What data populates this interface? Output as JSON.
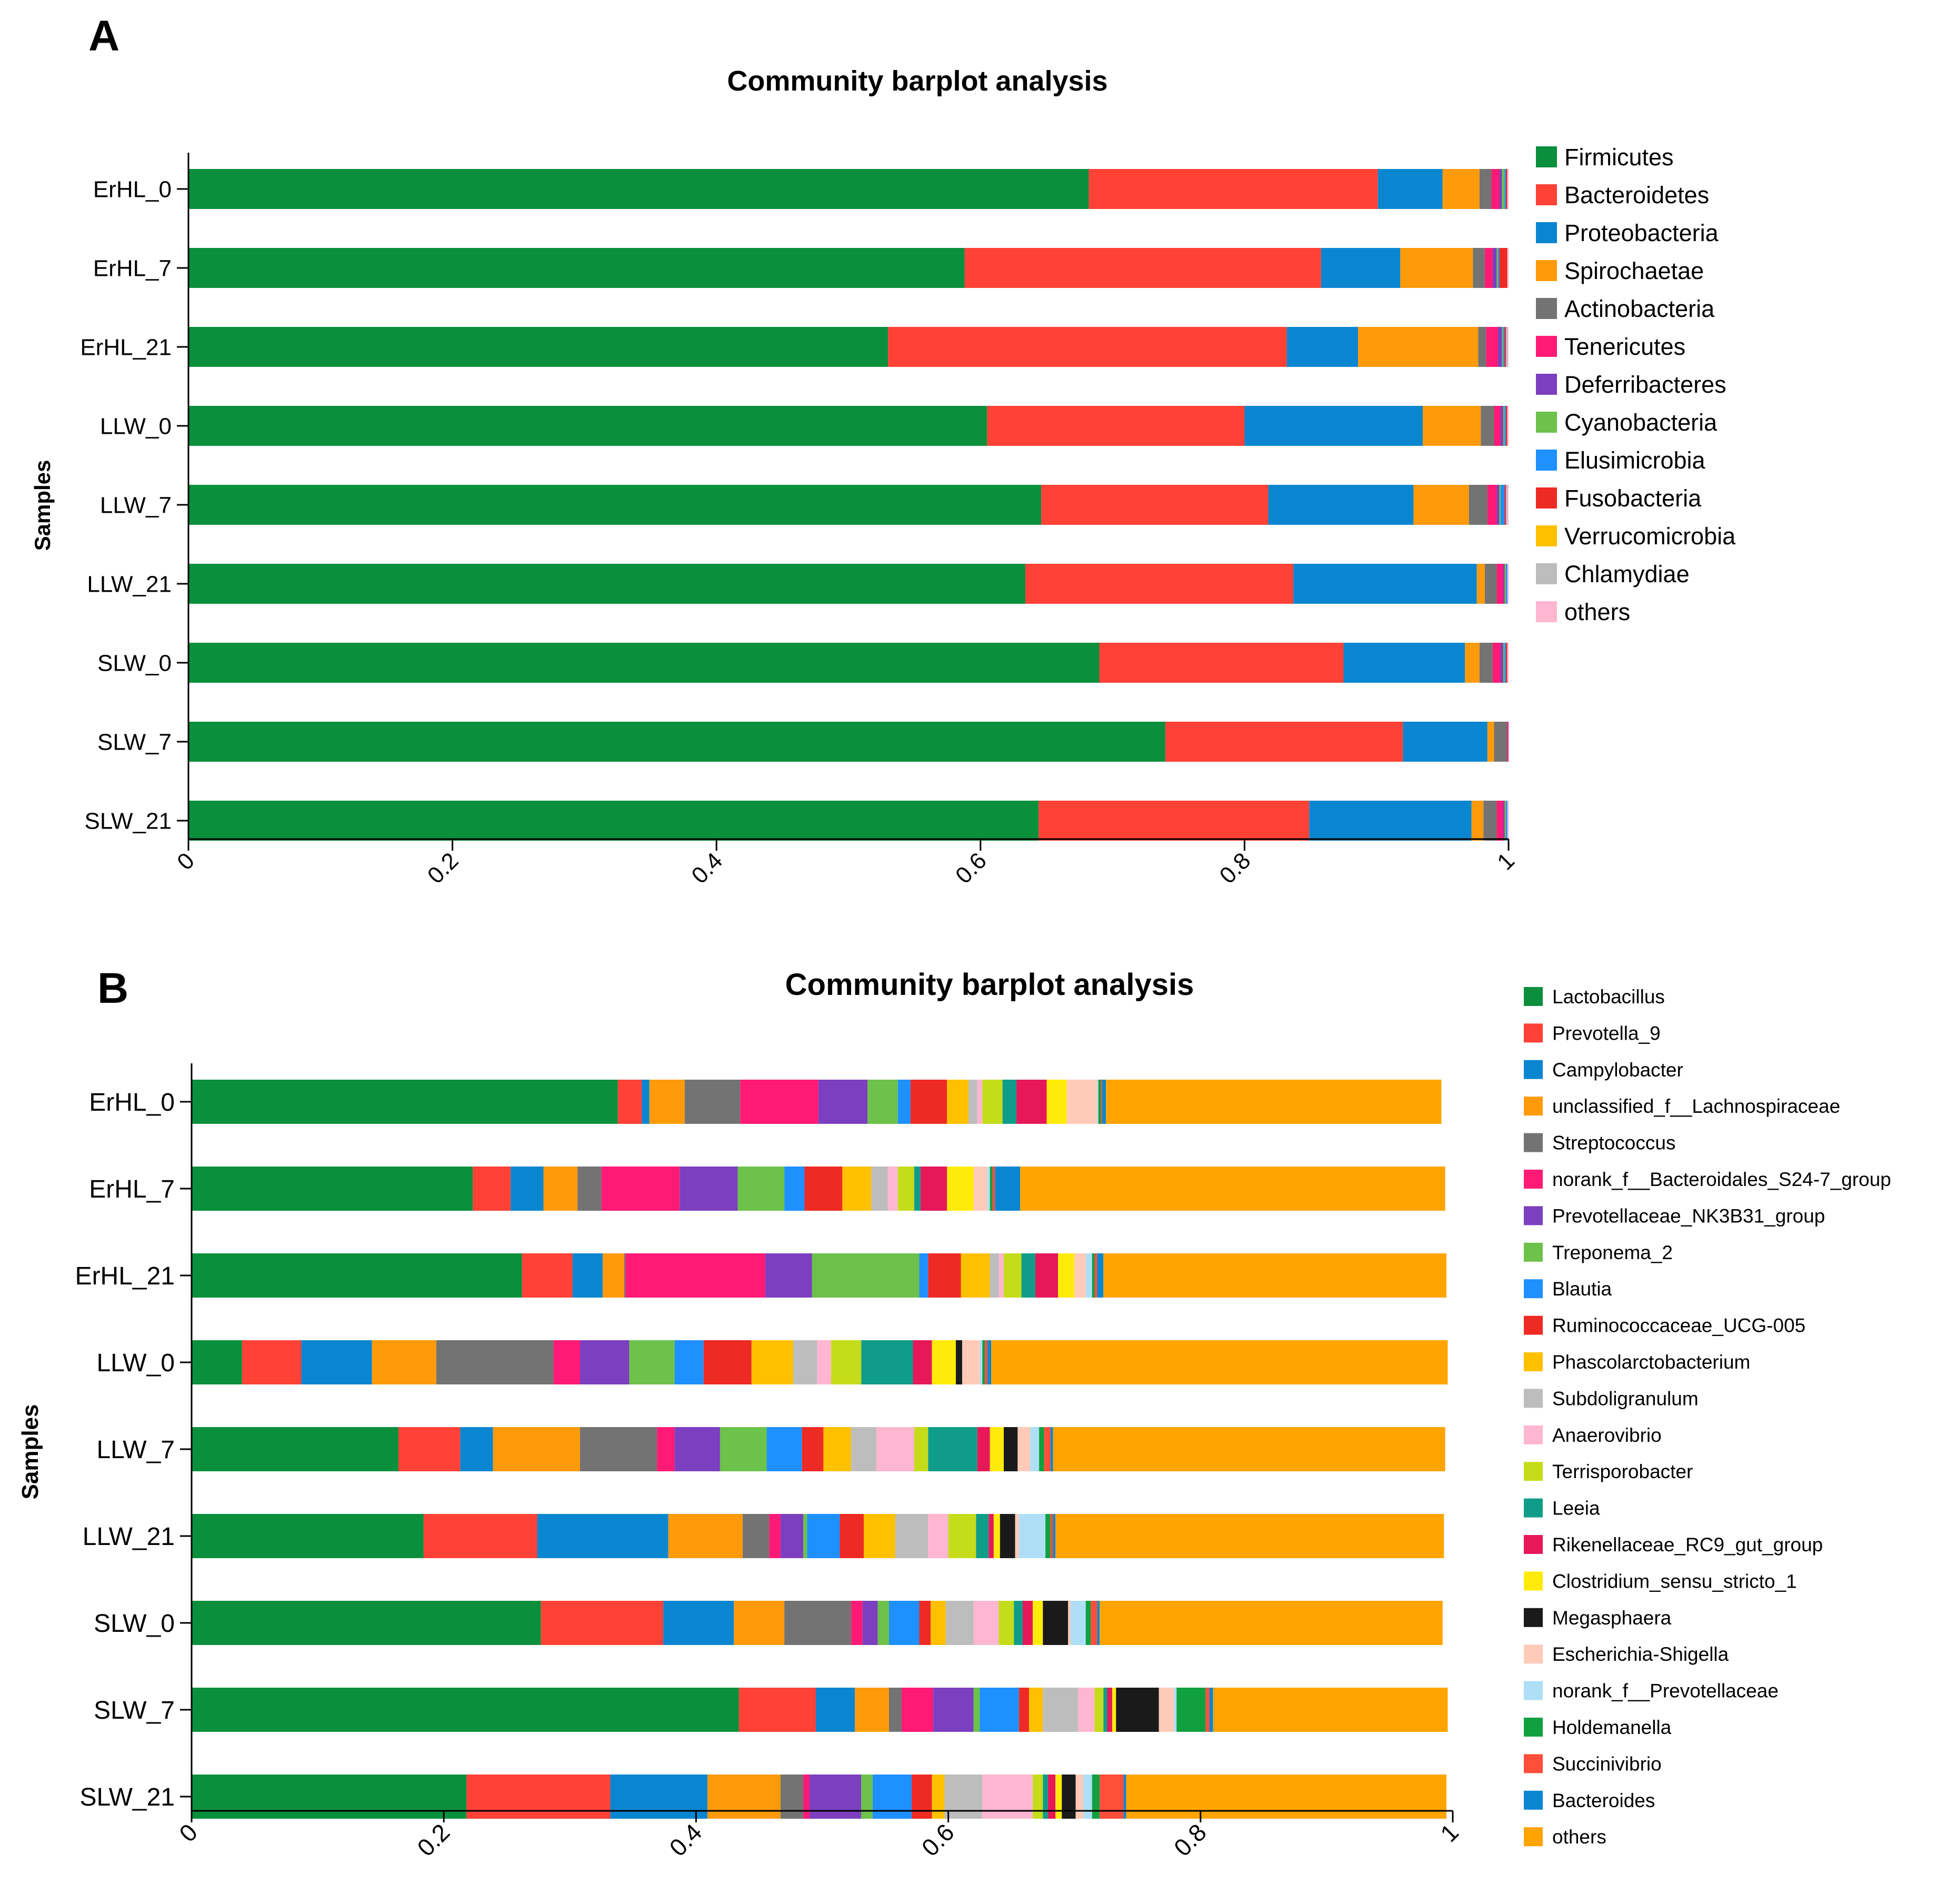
{
  "panels": [
    {
      "letter": "A",
      "title": "Community barplot analysis",
      "ylabel": "Samples"
    },
    {
      "letter": "B",
      "title": "Community barplot analysis",
      "ylabel": "Samples"
    }
  ],
  "chart_data": [
    {
      "type": "bar",
      "orientation": "horizontal",
      "stacked": true,
      "title": "Community barplot analysis",
      "xlabel": "",
      "ylabel": "Samples",
      "xlim": [
        0,
        1
      ],
      "xticks": [
        "0",
        "0.2",
        "0.4",
        "0.6",
        "0.8",
        "1"
      ],
      "legend_position": "right",
      "categories": [
        "ErHL_0",
        "ErHL_7",
        "ErHL_21",
        "LLW_0",
        "LLW_7",
        "LLW_21",
        "SLW_0",
        "SLW_7",
        "SLW_21"
      ],
      "series": [
        {
          "name": "Firmicutes",
          "color": "#0A8F3C",
          "values": [
            0.682,
            0.588,
            0.53,
            0.605,
            0.646,
            0.634,
            0.69,
            0.74,
            0.644
          ]
        },
        {
          "name": "Bacteroidetes",
          "color": "#FF4136",
          "values": [
            0.219,
            0.27,
            0.302,
            0.195,
            0.172,
            0.203,
            0.185,
            0.18,
            0.205
          ]
        },
        {
          "name": "Proteobacteria",
          "color": "#0A86D1",
          "values": [
            0.049,
            0.06,
            0.054,
            0.135,
            0.11,
            0.139,
            0.092,
            0.064,
            0.123
          ]
        },
        {
          "name": "Spirochaetae",
          "color": "#FF9A0A",
          "values": [
            0.028,
            0.055,
            0.091,
            0.044,
            0.042,
            0.006,
            0.011,
            0.005,
            0.009
          ]
        },
        {
          "name": "Actinobacteria",
          "color": "#737373",
          "values": [
            0.009,
            0.009,
            0.006,
            0.01,
            0.014,
            0.009,
            0.01,
            0.01,
            0.01
          ]
        },
        {
          "name": "Tenericutes",
          "color": "#FF1A75",
          "values": [
            0.006,
            0.006,
            0.009,
            0.005,
            0.007,
            0.005,
            0.006,
            0.001,
            0.005
          ]
        },
        {
          "name": "Deferribacteres",
          "color": "#7B3FBF",
          "values": [
            0.002,
            0.003,
            0.003,
            0.002,
            0.002,
            0.001,
            0.002,
            0.0,
            0.001
          ]
        },
        {
          "name": "Cyanobacteria",
          "color": "#6CC24A",
          "values": [
            0.002,
            0.001,
            0.001,
            0.001,
            0.001,
            0.001,
            0.001,
            0.0,
            0.001
          ]
        },
        {
          "name": "Elusimicrobia",
          "color": "#1E90FF",
          "values": [
            0.001,
            0.001,
            0.001,
            0.001,
            0.003,
            0.001,
            0.001,
            0.0,
            0.001
          ]
        },
        {
          "name": "Fusobacteria",
          "color": "#EE2A24",
          "values": [
            0.001,
            0.006,
            0.001,
            0.001,
            0.001,
            0.0,
            0.001,
            0.0,
            0.0
          ]
        },
        {
          "name": "Verrucomicrobia",
          "color": "#FFC000",
          "values": [
            0.0,
            0.0,
            0.0,
            0.0,
            0.0,
            0.0,
            0.0,
            0.0,
            0.0
          ]
        },
        {
          "name": "Chlamydiae",
          "color": "#BDBDBD",
          "values": [
            0.0,
            0.0,
            0.001,
            0.0,
            0.001,
            0.0,
            0.0,
            0.0,
            0.0
          ]
        },
        {
          "name": "others",
          "color": "#FFB6D1",
          "values": [
            0.001,
            0.001,
            0.001,
            0.001,
            0.001,
            0.001,
            0.001,
            0.0,
            0.001
          ]
        }
      ]
    },
    {
      "type": "bar",
      "orientation": "horizontal",
      "stacked": true,
      "title": "Community barplot analysis",
      "xlabel": "",
      "ylabel": "Samples",
      "xlim": [
        0,
        1
      ],
      "xticks": [
        "0",
        "0.2",
        "0.4",
        "0.6",
        "0.8",
        "1"
      ],
      "legend_position": "right",
      "categories": [
        "ErHL_0",
        "ErHL_7",
        "ErHL_21",
        "LLW_0",
        "LLW_7",
        "LLW_21",
        "SLW_0",
        "SLW_7",
        "SLW_21"
      ],
      "series": [
        {
          "name": "Lactobacillus",
          "color": "#0A8F3C",
          "values": [
            0.338,
            0.223,
            0.262,
            0.04,
            0.164,
            0.184,
            0.277,
            0.434,
            0.218
          ]
        },
        {
          "name": "Prevotella_9",
          "color": "#FF4136",
          "values": [
            0.019,
            0.03,
            0.04,
            0.047,
            0.049,
            0.09,
            0.097,
            0.061,
            0.114
          ]
        },
        {
          "name": "Campylobacter",
          "color": "#0A86D1",
          "values": [
            0.006,
            0.026,
            0.024,
            0.056,
            0.026,
            0.104,
            0.056,
            0.031,
            0.077
          ]
        },
        {
          "name": "unclassified_f__Lachnospiraceae",
          "color": "#FF9A0A",
          "values": [
            0.028,
            0.027,
            0.017,
            0.051,
            0.069,
            0.059,
            0.04,
            0.027,
            0.058
          ]
        },
        {
          "name": "Streptococcus",
          "color": "#737373",
          "values": [
            0.044,
            0.019,
            0.001,
            0.093,
            0.061,
            0.021,
            0.053,
            0.01,
            0.018
          ]
        },
        {
          "name": "norank_f__Bacteroidales_S24-7_group",
          "color": "#FF1A75",
          "values": [
            0.062,
            0.062,
            0.111,
            0.021,
            0.014,
            0.009,
            0.009,
            0.025,
            0.005
          ]
        },
        {
          "name": "Prevotellaceae_NK3B31_group",
          "color": "#7B3FBF",
          "values": [
            0.039,
            0.046,
            0.037,
            0.039,
            0.036,
            0.018,
            0.012,
            0.032,
            0.041
          ]
        },
        {
          "name": "Treponema_2",
          "color": "#6CC24A",
          "values": [
            0.024,
            0.037,
            0.085,
            0.036,
            0.037,
            0.003,
            0.009,
            0.005,
            0.009
          ]
        },
        {
          "name": "Blautia",
          "color": "#1E90FF",
          "values": [
            0.01,
            0.016,
            0.007,
            0.023,
            0.028,
            0.026,
            0.024,
            0.031,
            0.031
          ]
        },
        {
          "name": "Ruminococcaceae_UCG-005",
          "color": "#EE2A24",
          "values": [
            0.029,
            0.03,
            0.026,
            0.038,
            0.017,
            0.019,
            0.009,
            0.008,
            0.016
          ]
        },
        {
          "name": "Phascolarctobacterium",
          "color": "#FFC000",
          "values": [
            0.017,
            0.023,
            0.023,
            0.033,
            0.022,
            0.025,
            0.012,
            0.011,
            0.01
          ]
        },
        {
          "name": "Subdoligranulum",
          "color": "#BDBDBD",
          "values": [
            0.007,
            0.013,
            0.007,
            0.019,
            0.02,
            0.026,
            0.022,
            0.028,
            0.03
          ]
        },
        {
          "name": "Anaerovibrio",
          "color": "#FFB6D1",
          "values": [
            0.004,
            0.008,
            0.004,
            0.011,
            0.03,
            0.016,
            0.02,
            0.013,
            0.04
          ]
        },
        {
          "name": "Terrisporobacter",
          "color": "#C5DC1A",
          "values": [
            0.016,
            0.013,
            0.014,
            0.024,
            0.011,
            0.022,
            0.012,
            0.007,
            0.008
          ]
        },
        {
          "name": "Leeia",
          "color": "#0F9D8A",
          "values": [
            0.011,
            0.005,
            0.011,
            0.041,
            0.039,
            0.01,
            0.007,
            0.003,
            0.004
          ]
        },
        {
          "name": "Rikenellaceae_RC9_gut_group",
          "color": "#E6185A",
          "values": [
            0.024,
            0.021,
            0.018,
            0.015,
            0.01,
            0.004,
            0.008,
            0.004,
            0.006
          ]
        },
        {
          "name": "Clostridium_sensu_stricto_1",
          "color": "#FFEB0A",
          "values": [
            0.016,
            0.021,
            0.013,
            0.019,
            0.011,
            0.005,
            0.008,
            0.003,
            0.005
          ]
        },
        {
          "name": "Megasphaera",
          "color": "#1A1A1A",
          "values": [
            0.0,
            0.0,
            0.0,
            0.005,
            0.011,
            0.012,
            0.02,
            0.034,
            0.011
          ]
        },
        {
          "name": "Escherichia-Shigella",
          "color": "#FFCBB8",
          "values": [
            0.024,
            0.011,
            0.009,
            0.014,
            0.01,
            0.003,
            0.002,
            0.012,
            0.006
          ]
        },
        {
          "name": "norank_f__Prevotellaceae",
          "color": "#AEDFF7",
          "values": [
            0.001,
            0.002,
            0.005,
            0.002,
            0.007,
            0.021,
            0.012,
            0.002,
            0.007
          ]
        },
        {
          "name": "Holdemanella",
          "color": "#10A040",
          "values": [
            0.002,
            0.002,
            0.002,
            0.002,
            0.004,
            0.004,
            0.004,
            0.023,
            0.006
          ]
        },
        {
          "name": "Succinivibrio",
          "color": "#FF4E3A",
          "values": [
            0.001,
            0.002,
            0.002,
            0.002,
            0.005,
            0.002,
            0.005,
            0.003,
            0.019
          ]
        },
        {
          "name": "Bacteroides",
          "color": "#0A86D1",
          "values": [
            0.003,
            0.02,
            0.005,
            0.003,
            0.002,
            0.002,
            0.002,
            0.003,
            0.002
          ]
        },
        {
          "name": "others",
          "color": "#FFA400",
          "values": [
            0.266,
            0.337,
            0.272,
            0.362,
            0.311,
            0.308,
            0.272,
            0.186,
            0.254
          ]
        }
      ]
    }
  ]
}
